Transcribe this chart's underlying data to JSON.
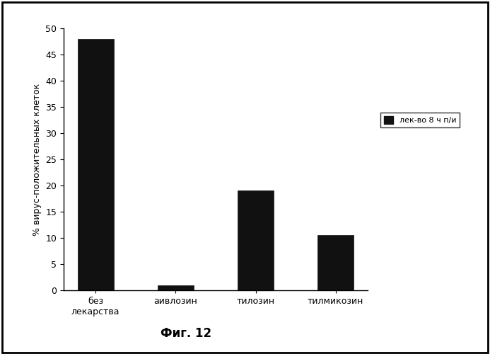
{
  "categories": [
    "без\nлекарства",
    "аивлозин",
    "тилозин",
    "тилмикозин"
  ],
  "values": [
    48.0,
    1.0,
    19.0,
    10.5
  ],
  "bar_color": "#111111",
  "ylabel": "% вирус-положительных клеток",
  "ylim": [
    0,
    50
  ],
  "yticks": [
    0,
    5,
    10,
    15,
    20,
    25,
    30,
    35,
    40,
    45,
    50
  ],
  "legend_label": "лек-во 8 ч п/и",
  "figure_caption": "Фиг. 12",
  "background_color": "#ffffff",
  "bar_width": 0.45
}
